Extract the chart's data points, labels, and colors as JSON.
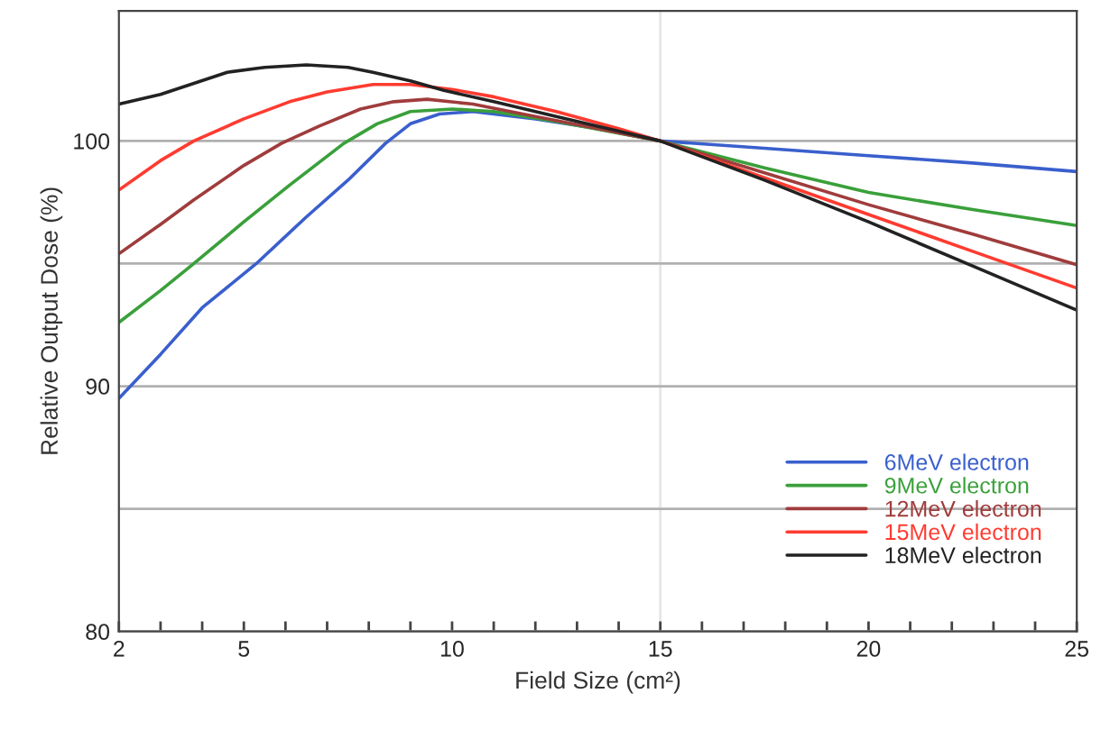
{
  "chart_data": {
    "type": "line",
    "xlabel": "Field Size (cm²)",
    "ylabel": "Relative Output Dose (%)",
    "xlim": [
      2,
      25
    ],
    "ylim": [
      80,
      105.3
    ],
    "xticks": [
      2,
      {
        "value": 3,
        "label": null
      },
      {
        "value": 4,
        "label": null
      },
      5,
      {
        "value": 6,
        "label": null
      },
      {
        "value": 7,
        "label": null
      },
      {
        "value": 8,
        "label": null
      },
      {
        "value": 9,
        "label": null
      },
      10,
      {
        "value": 11,
        "label": null
      },
      {
        "value": 12,
        "label": null
      },
      {
        "value": 13,
        "label": null
      },
      {
        "value": 14,
        "label": null
      },
      15,
      {
        "value": 16,
        "label": null
      },
      {
        "value": 17,
        "label": null
      },
      {
        "value": 18,
        "label": null
      },
      {
        "value": 19,
        "label": null
      },
      20,
      {
        "value": 21,
        "label": null
      },
      {
        "value": 22,
        "label": null
      },
      {
        "value": 23,
        "label": null
      },
      {
        "value": 24,
        "label": null
      },
      25
    ],
    "yticks": [
      80,
      {
        "value": 85,
        "label": null
      },
      90,
      {
        "value": 95,
        "label": null
      },
      100
    ],
    "grid": "y",
    "legend": "bottom right",
    "marker": "none",
    "line_style": "solid",
    "ref_lines": [
      {
        "axis": "x",
        "value": 15,
        "color": "#e6e6e6"
      }
    ],
    "series": [
      {
        "name": "6MeV electron",
        "color": "#3a5fcd",
        "x": [
          2,
          3,
          4,
          5.3,
          6.5,
          7.5,
          8.4,
          9,
          9.7,
          10.5,
          12,
          13.5,
          15,
          17.5,
          20,
          22.5,
          25
        ],
        "values": [
          89.5,
          91.3,
          93.2,
          95.0,
          96.9,
          98.4,
          99.9,
          100.7,
          101.1,
          101.2,
          100.9,
          100.5,
          100,
          99.7,
          99.4,
          99.1,
          98.75
        ]
      },
      {
        "name": "9MeV electron",
        "color": "#3aa03a",
        "x": [
          2,
          3,
          3.8,
          5,
          6.1,
          7.4,
          8.2,
          9,
          10,
          11,
          12.5,
          15,
          17.5,
          20,
          22.5,
          25
        ],
        "values": [
          92.6,
          93.9,
          95.0,
          96.7,
          98.2,
          99.9,
          100.7,
          101.2,
          101.3,
          101.2,
          100.8,
          100,
          98.9,
          97.9,
          97.2,
          96.55
        ]
      },
      {
        "name": "12MeV electron",
        "color": "#a03c3c",
        "x": [
          2,
          3,
          3.8,
          5,
          5.9,
          6.8,
          7.8,
          8.6,
          9.4,
          10.5,
          12,
          13.5,
          15,
          17.5,
          20,
          22.5,
          25
        ],
        "values": [
          95.4,
          96.6,
          97.6,
          99.0,
          99.9,
          100.6,
          101.3,
          101.6,
          101.7,
          101.5,
          101.0,
          100.5,
          100,
          98.7,
          97.4,
          96.2,
          94.95
        ]
      },
      {
        "name": "15MeV electron",
        "color": "#ff3b30",
        "x": [
          2,
          3,
          3.8,
          5,
          6.1,
          7,
          8.1,
          9,
          10,
          11,
          12.5,
          14,
          15,
          17.5,
          20,
          22.5,
          25
        ],
        "values": [
          98.0,
          99.2,
          100.0,
          100.9,
          101.6,
          102.0,
          102.3,
          102.3,
          102.1,
          101.8,
          101.2,
          100.5,
          100,
          98.5,
          97.0,
          95.5,
          94.0
        ]
      },
      {
        "name": "18MeV electron",
        "color": "#222222",
        "x": [
          2,
          3,
          4.6,
          5.5,
          6.5,
          7.5,
          8.1,
          9,
          9.8,
          11,
          12.5,
          14,
          15,
          17.5,
          20,
          22.5,
          25
        ],
        "values": [
          101.5,
          101.9,
          102.8,
          103.0,
          103.1,
          103.0,
          102.8,
          102.45,
          102.06,
          101.6,
          101.0,
          100.4,
          100,
          98.4,
          96.7,
          94.9,
          93.1
        ]
      }
    ]
  }
}
